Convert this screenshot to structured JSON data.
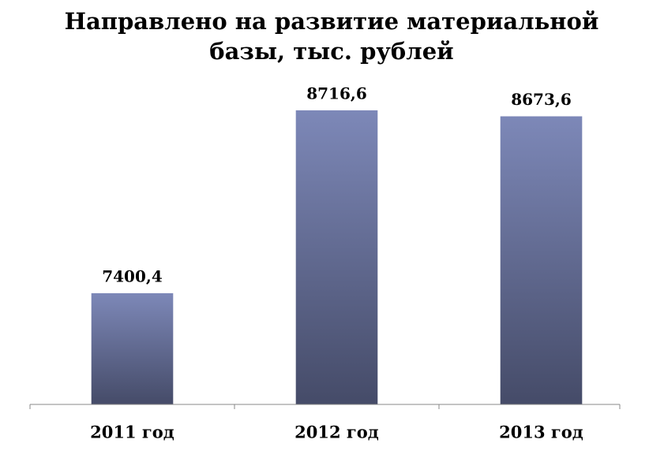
{
  "chart_data": {
    "type": "bar",
    "title": "Направлено на развитие материальной базы, тыс. рублей",
    "categories": [
      "2011 год",
      "2012 год",
      "2013 год"
    ],
    "values": [
      7400.4,
      8716.6,
      8673.6
    ],
    "value_labels": [
      "7400,4",
      "8716,6",
      "8673,6"
    ],
    "color": [
      "#7d88b8",
      "#454b68"
    ],
    "ylim": [
      6600,
      9000
    ]
  }
}
